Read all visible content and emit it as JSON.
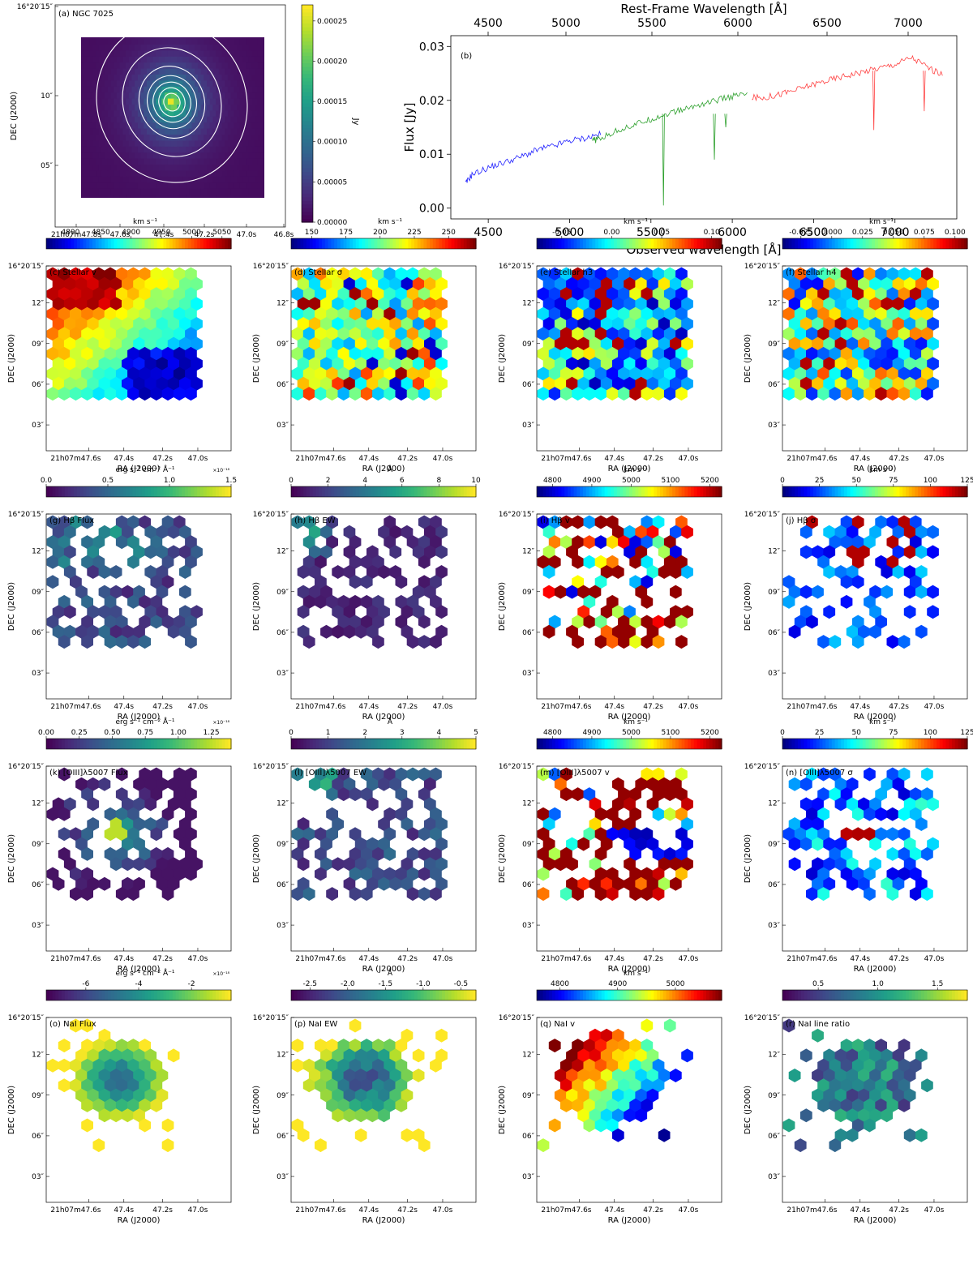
{
  "figure": {
    "ra_label": "RA (J2000)",
    "dec_label": "DEC (J2000)",
    "ra_ticks": [
      "21h07m47.6s",
      "47.4s",
      "47.2s",
      "47.0s"
    ],
    "dec_ticks": [
      "16°20′15″",
      "12″",
      "09″",
      "06″",
      "03″"
    ]
  },
  "chart_data": [
    {
      "id": "a",
      "type": "heatmap",
      "title": "(a) NGC 7025",
      "xlabel": "RA (J2000)",
      "ylabel": "DEC (J2000)",
      "x_ticks": [
        "21h07m47.8s",
        "47.6s",
        "47.4s",
        "47.2s",
        "47.0s",
        "46.8s"
      ],
      "y_ticks": [
        "16°20′15″",
        "10″",
        "05″"
      ],
      "colorbar": {
        "label": "Jy",
        "colormap": "viridis",
        "ticks": [
          "0.00000",
          "0.00005",
          "0.00010",
          "0.00015",
          "0.00020",
          "0.00025"
        ],
        "range": [
          0,
          0.00027
        ]
      },
      "contours": "white isophotes centred on the nucleus"
    },
    {
      "id": "b",
      "type": "line",
      "title": "(b)",
      "xlabel": "Observed wavelength [Å]",
      "x2label": "Rest-Frame Wavelength [Å]",
      "ylabel": "Flux [Jy]",
      "xlim": [
        4270,
        7380
      ],
      "ylim": [
        -0.002,
        0.032
      ],
      "x_ticks": [
        4500,
        5000,
        5500,
        6000,
        6500,
        7000
      ],
      "x2_ticks": [
        4500,
        5000,
        5500,
        6000,
        6500,
        7000
      ],
      "y_ticks": [
        "0.00",
        "0.01",
        "0.02",
        "0.03"
      ],
      "series": [
        {
          "name": "blue arm",
          "color": "#1f1fff",
          "x": [
            4360,
            4400,
            4500,
            4600,
            4700,
            4800,
            4900,
            5000,
            5100,
            5200
          ],
          "y": [
            0.0045,
            0.0062,
            0.0075,
            0.0085,
            0.0095,
            0.0108,
            0.0115,
            0.0125,
            0.013,
            0.0138
          ]
        },
        {
          "name": "green arm",
          "color": "#2ca02c",
          "x": [
            5140,
            5200,
            5300,
            5400,
            5500,
            5600,
            5700,
            5800,
            5900,
            6000,
            6100
          ],
          "y": [
            0.0125,
            0.013,
            0.0145,
            0.0155,
            0.0165,
            0.0175,
            0.0183,
            0.0192,
            0.02,
            0.0207,
            0.0212
          ]
        },
        {
          "name": "red arm",
          "color": "#ff4040",
          "x": [
            6120,
            6200,
            6300,
            6400,
            6500,
            6600,
            6700,
            6800,
            6900,
            7000,
            7100,
            7200,
            7300
          ],
          "y": [
            0.0205,
            0.0205,
            0.0212,
            0.022,
            0.023,
            0.0238,
            0.0246,
            0.0253,
            0.026,
            0.0267,
            0.028,
            0.0262,
            0.0245
          ]
        }
      ]
    },
    {
      "id": "c",
      "type": "heatmap",
      "title": "(c) Stellar v",
      "colorbar": {
        "unit": "km s⁻¹",
        "colormap": "jet",
        "ticks": [
          "4800",
          "4850",
          "4900",
          "4950",
          "5000",
          "5050"
        ],
        "range": [
          4760,
          5065
        ]
      }
    },
    {
      "id": "d",
      "type": "heatmap",
      "title": "(d) Stellar σ",
      "colorbar": {
        "unit": "km s⁻¹",
        "colormap": "jet",
        "ticks": [
          "150",
          "175",
          "200",
          "225",
          "250"
        ],
        "range": [
          135,
          270
        ]
      }
    },
    {
      "id": "e",
      "type": "heatmap",
      "title": "(e) Stellar h3",
      "colorbar": {
        "unit": "km s⁻¹",
        "colormap": "jet",
        "ticks": [
          "-0.05",
          "0.00",
          "0.05",
          "0.10"
        ],
        "range": [
          -0.075,
          0.11
        ]
      }
    },
    {
      "id": "f",
      "type": "heatmap",
      "title": "(f) Stellar h4",
      "colorbar": {
        "unit": "km s⁻¹",
        "colormap": "jet",
        "ticks": [
          "-0.025",
          "0.000",
          "0.025",
          "0.050",
          "0.075",
          "0.100"
        ],
        "range": [
          -0.04,
          0.11
        ]
      }
    },
    {
      "id": "g",
      "type": "heatmap",
      "title": "(g) Hβ Flux",
      "colorbar": {
        "unit": "erg s⁻¹ cm⁻² Å⁻¹",
        "exponent": "×10⁻¹⁸",
        "colormap": "viridis",
        "ticks": [
          "0.0",
          "0.5",
          "1.0",
          "1.5"
        ],
        "range": [
          0,
          1.5
        ]
      }
    },
    {
      "id": "h",
      "type": "heatmap",
      "title": "(h) Hβ EW",
      "colorbar": {
        "unit": "Å",
        "colormap": "viridis",
        "ticks": [
          "0",
          "2",
          "4",
          "6",
          "8",
          "10"
        ],
        "range": [
          0,
          10
        ]
      }
    },
    {
      "id": "i",
      "type": "heatmap",
      "title": "(i) Hβ v",
      "colorbar": {
        "unit": "km s⁻¹",
        "colormap": "jet",
        "ticks": [
          "4800",
          "4900",
          "5000",
          "5100",
          "5200"
        ],
        "range": [
          4760,
          5230
        ]
      }
    },
    {
      "id": "j",
      "type": "heatmap",
      "title": "(j) Hβ σ",
      "colorbar": {
        "unit": "km s⁻¹",
        "colormap": "jet",
        "ticks": [
          "0",
          "25",
          "50",
          "75",
          "100",
          "125"
        ],
        "range": [
          0,
          125
        ]
      }
    },
    {
      "id": "k",
      "type": "heatmap",
      "title": "(k) [OIII]λ5007 Flux",
      "colorbar": {
        "unit": "erg s⁻¹ cm⁻² Å⁻¹",
        "exponent": "×10⁻¹⁸",
        "colormap": "viridis",
        "ticks": [
          "0.00",
          "0.25",
          "0.50",
          "0.75",
          "1.00",
          "1.25"
        ],
        "range": [
          0,
          1.4
        ]
      }
    },
    {
      "id": "l",
      "type": "heatmap",
      "title": "(l) [OIII]λ5007 EW",
      "colorbar": {
        "unit": "Å",
        "colormap": "viridis",
        "ticks": [
          "0",
          "1",
          "2",
          "3",
          "4",
          "5"
        ],
        "range": [
          0,
          5
        ]
      }
    },
    {
      "id": "m",
      "type": "heatmap",
      "title": "(m) [OIII]λ5007 v",
      "colorbar": {
        "unit": "km s⁻¹",
        "colormap": "jet",
        "ticks": [
          "4800",
          "4900",
          "5000",
          "5100",
          "5200"
        ],
        "range": [
          4760,
          5230
        ]
      }
    },
    {
      "id": "n",
      "type": "heatmap",
      "title": "(n) [OIII]λ5007 σ",
      "colorbar": {
        "unit": "km s⁻¹",
        "colormap": "jet",
        "ticks": [
          "0",
          "25",
          "50",
          "75",
          "100",
          "125"
        ],
        "range": [
          0,
          125
        ]
      }
    },
    {
      "id": "o",
      "type": "heatmap",
      "title": "(o) NaI Flux",
      "colorbar": {
        "unit": "erg s⁻¹ cm⁻² Å⁻¹",
        "exponent": "×10⁻¹⁸",
        "colormap": "viridis",
        "ticks": [
          "-6",
          "-4",
          "-2"
        ],
        "range": [
          -7.5,
          -0.5
        ]
      }
    },
    {
      "id": "p",
      "type": "heatmap",
      "title": "(p) NaI EW",
      "colorbar": {
        "unit": "Å",
        "colormap": "viridis",
        "ticks": [
          "-2.5",
          "-2.0",
          "-1.5",
          "-1.0",
          "-0.5"
        ],
        "range": [
          -2.75,
          -0.3
        ]
      }
    },
    {
      "id": "q",
      "type": "heatmap",
      "title": "(q) NaI v",
      "colorbar": {
        "unit": "km s⁻¹",
        "colormap": "jet",
        "ticks": [
          "4800",
          "4900",
          "5000"
        ],
        "range": [
          4760,
          5080
        ]
      }
    },
    {
      "id": "r",
      "type": "heatmap",
      "title": "(r) NaI line ratio",
      "colorbar": {
        "unit": "",
        "colormap": "viridis",
        "ticks": [
          "0.5",
          "1.0",
          "1.5"
        ],
        "range": [
          0.2,
          1.75
        ]
      }
    }
  ]
}
